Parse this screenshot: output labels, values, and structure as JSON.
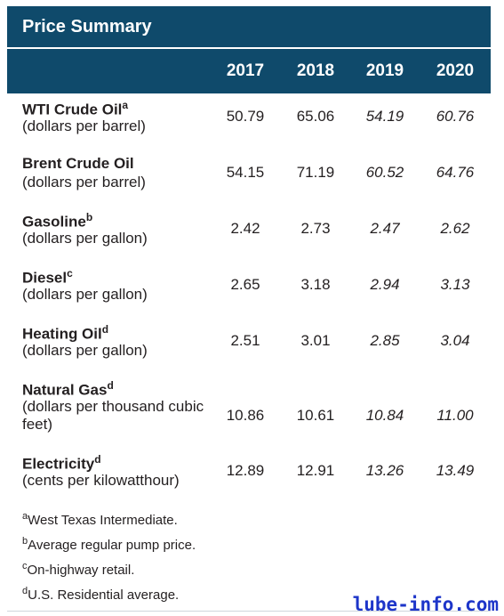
{
  "title": "Price Summary",
  "chart_data": {
    "type": "table",
    "columns": [
      "2017",
      "2018",
      "2019",
      "2020"
    ],
    "rows": [
      {
        "name": "WTI Crude Oil",
        "sup": "a",
        "unit": "(dollars per barrel)",
        "values": [
          "50.79",
          "65.06",
          "54.19",
          "60.76"
        ]
      },
      {
        "name": "Brent Crude Oil",
        "sup": "",
        "unit": "(dollars per barrel)",
        "values": [
          "54.15",
          "71.19",
          "60.52",
          "64.76"
        ]
      },
      {
        "name": "Gasoline",
        "sup": "b",
        "unit": "(dollars per gallon)",
        "values": [
          "2.42",
          "2.73",
          "2.47",
          "2.62"
        ]
      },
      {
        "name": "Diesel",
        "sup": "c",
        "unit": "(dollars per gallon)",
        "values": [
          "2.65",
          "3.18",
          "2.94",
          "3.13"
        ]
      },
      {
        "name": "Heating Oil",
        "sup": "d",
        "unit": "(dollars per gallon)",
        "values": [
          "2.51",
          "3.01",
          "2.85",
          "3.04"
        ]
      },
      {
        "name": "Natural Gas",
        "sup": "d",
        "unit": "(dollars per thousand cubic feet)",
        "values": [
          "10.86",
          "10.61",
          "10.84",
          "11.00"
        ]
      },
      {
        "name": "Electricity",
        "sup": "d",
        "unit": "(cents per kilowatthour)",
        "values": [
          "12.89",
          "12.91",
          "13.26",
          "13.49"
        ]
      }
    ],
    "footnotes": [
      {
        "sup": "a",
        "text": "West Texas Intermediate."
      },
      {
        "sup": "b",
        "text": "Average regular pump price."
      },
      {
        "sup": "c",
        "text": "On-highway retail."
      },
      {
        "sup": "d",
        "text": "U.S. Residential average."
      }
    ]
  },
  "watermark": "lube-info.com",
  "colors": {
    "header_bg": "#0f4a6b",
    "watermark": "#1d35c9"
  }
}
